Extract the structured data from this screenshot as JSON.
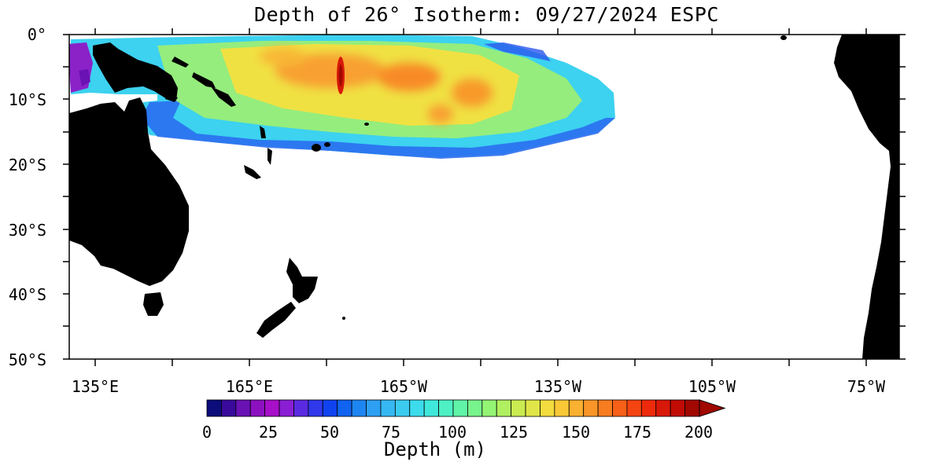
{
  "title": "Depth of 26° Isotherm: 09/27/2024 ESPC",
  "map": {
    "lon_ticks": [
      "135°E",
      "165°E",
      "165°W",
      "135°W",
      "105°W",
      "75°W"
    ],
    "lat_ticks": [
      "0°",
      "10°S",
      "20°S",
      "30°S",
      "40°S",
      "50°S"
    ],
    "land_color": "#000000",
    "ocean_color": "#ffffff"
  },
  "colorbar": {
    "label": "Depth (m)",
    "ticks": [
      "0",
      "25",
      "50",
      "75",
      "100",
      "125",
      "150",
      "175",
      "200"
    ],
    "colors": [
      "#0c0c7a",
      "#3a0a9c",
      "#6a12b4",
      "#8c10c0",
      "#a70fc8",
      "#8a1ed4",
      "#5a2ae0",
      "#2f38ea",
      "#1043f0",
      "#1064f0",
      "#1e86f2",
      "#2ea0f4",
      "#36b8f2",
      "#3ccbf0",
      "#3cdcec",
      "#40e8dc",
      "#4ef0c4",
      "#60f4a8",
      "#78f48c",
      "#94f474",
      "#b0f060",
      "#caec50",
      "#e0e648",
      "#f2dc3e",
      "#f8c836",
      "#fab030",
      "#fa9628",
      "#f87c20",
      "#f66018",
      "#f44412",
      "#ee2a0c",
      "#d81808",
      "#c00c04",
      "#a00800"
    ]
  },
  "legend_arrow_color": "#a00800"
}
